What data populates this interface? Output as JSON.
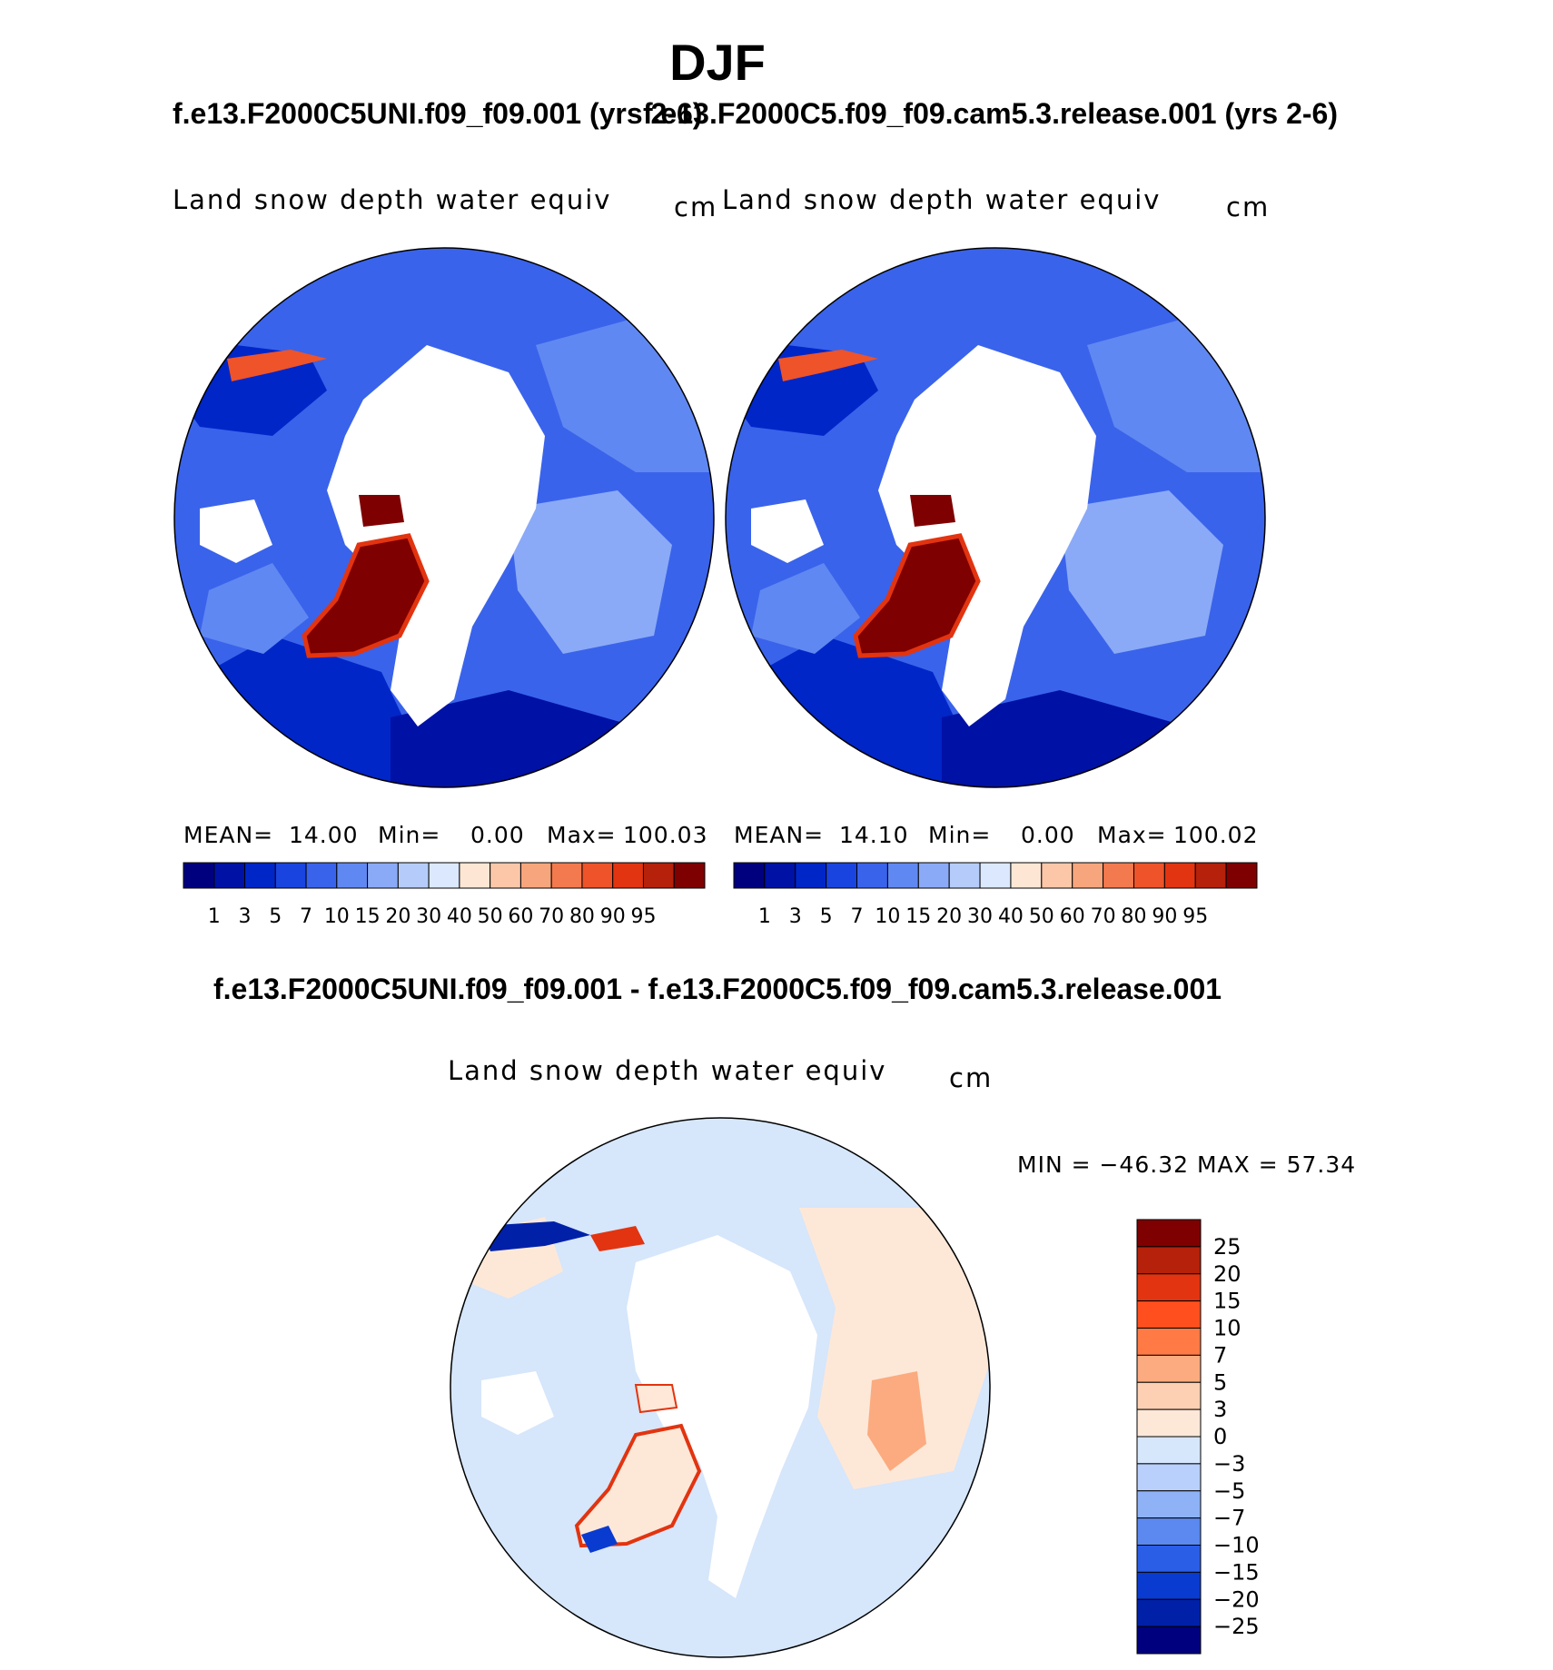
{
  "main_title": "DJF",
  "panel_left": {
    "run_title": "f.e13.F2000C5UNI.f09_f09.001 (yrs 2-6)",
    "variable": "Land snow depth water equiv",
    "units": "cm",
    "mean_label": "MEAN=",
    "mean_value": "14.00",
    "min_label": "Min=",
    "min_value": "0.00",
    "max_label": "Max=",
    "max_value": "100.03"
  },
  "panel_right": {
    "run_title": "f.e13.F2000C5.f09_f09.cam5.3.release.001 (yrs 2-6)",
    "variable": "Land snow depth water equiv",
    "units": "cm",
    "mean_label": "MEAN=",
    "mean_value": "14.10",
    "min_label": "Min=",
    "min_value": "0.00",
    "max_label": "Max=",
    "max_value": "100.02"
  },
  "panel_diff": {
    "title": "f.e13.F2000C5UNI.f09_f09.001 - f.e13.F2000C5.f09_f09.cam5.3.release.001",
    "variable": "Land snow depth water equiv",
    "units": "cm",
    "minmax": "MIN = −46.32 MAX =   57.34"
  },
  "chart_data": [
    {
      "type": "heatmap",
      "projection": "north polar stereographic",
      "title": "f.e13.F2000C5UNI.f09_f09.001 (yrs 2-6)",
      "variable": "Land snow depth water equiv",
      "units": "cm",
      "mean": 14.0,
      "min": 0.0,
      "max": 100.03,
      "contour_levels": [
        "1",
        "3",
        "5",
        "7",
        "10",
        "15",
        "20",
        "30",
        "40",
        "50",
        "60",
        "70",
        "80",
        "90",
        "95"
      ],
      "colors": [
        "#00007f",
        "#0011a6",
        "#0026c8",
        "#1a44e0",
        "#3a63eb",
        "#6088f2",
        "#8aaaf7",
        "#b5ccfb",
        "#dbe8fd",
        "#fde6d3",
        "#fbc7a8",
        "#f7a57c",
        "#f37a4e",
        "#ee5329",
        "#e23410",
        "#b5210a",
        "#7f0000"
      ]
    },
    {
      "type": "heatmap",
      "projection": "north polar stereographic",
      "title": "f.e13.F2000C5.f09_f09.cam5.3.release.001 (yrs 2-6)",
      "variable": "Land snow depth water equiv",
      "units": "cm",
      "mean": 14.1,
      "min": 0.0,
      "max": 100.02,
      "contour_levels": [
        "1",
        "3",
        "5",
        "7",
        "10",
        "15",
        "20",
        "30",
        "40",
        "50",
        "60",
        "70",
        "80",
        "90",
        "95"
      ],
      "colors": [
        "#00007f",
        "#0011a6",
        "#0026c8",
        "#1a44e0",
        "#3a63eb",
        "#6088f2",
        "#8aaaf7",
        "#b5ccfb",
        "#dbe8fd",
        "#fde6d3",
        "#fbc7a8",
        "#f7a57c",
        "#f37a4e",
        "#ee5329",
        "#e23410",
        "#b5210a",
        "#7f0000"
      ]
    },
    {
      "type": "heatmap",
      "projection": "north polar stereographic",
      "title": "f.e13.F2000C5UNI.f09_f09.001 - f.e13.F2000C5.f09_f09.cam5.3.release.001",
      "variable": "Land snow depth water equiv",
      "units": "cm",
      "min": -46.32,
      "max": 57.34,
      "contour_levels": [
        "25",
        "20",
        "15",
        "10",
        "7",
        "5",
        "3",
        "0",
        "−3",
        "−5",
        "−7",
        "−10",
        "−15",
        "−20",
        "−25"
      ],
      "colors": [
        "#7f0000",
        "#b5210a",
        "#e23410",
        "#ff4f1f",
        "#ff7a45",
        "#fbab7f",
        "#fdd0b3",
        "#fde8d8",
        "#d6e6fb",
        "#b8d0fb",
        "#8fb2f7",
        "#5b89f0",
        "#2b5ee6",
        "#0a3bd0",
        "#0020a8",
        "#00007f"
      ]
    }
  ]
}
